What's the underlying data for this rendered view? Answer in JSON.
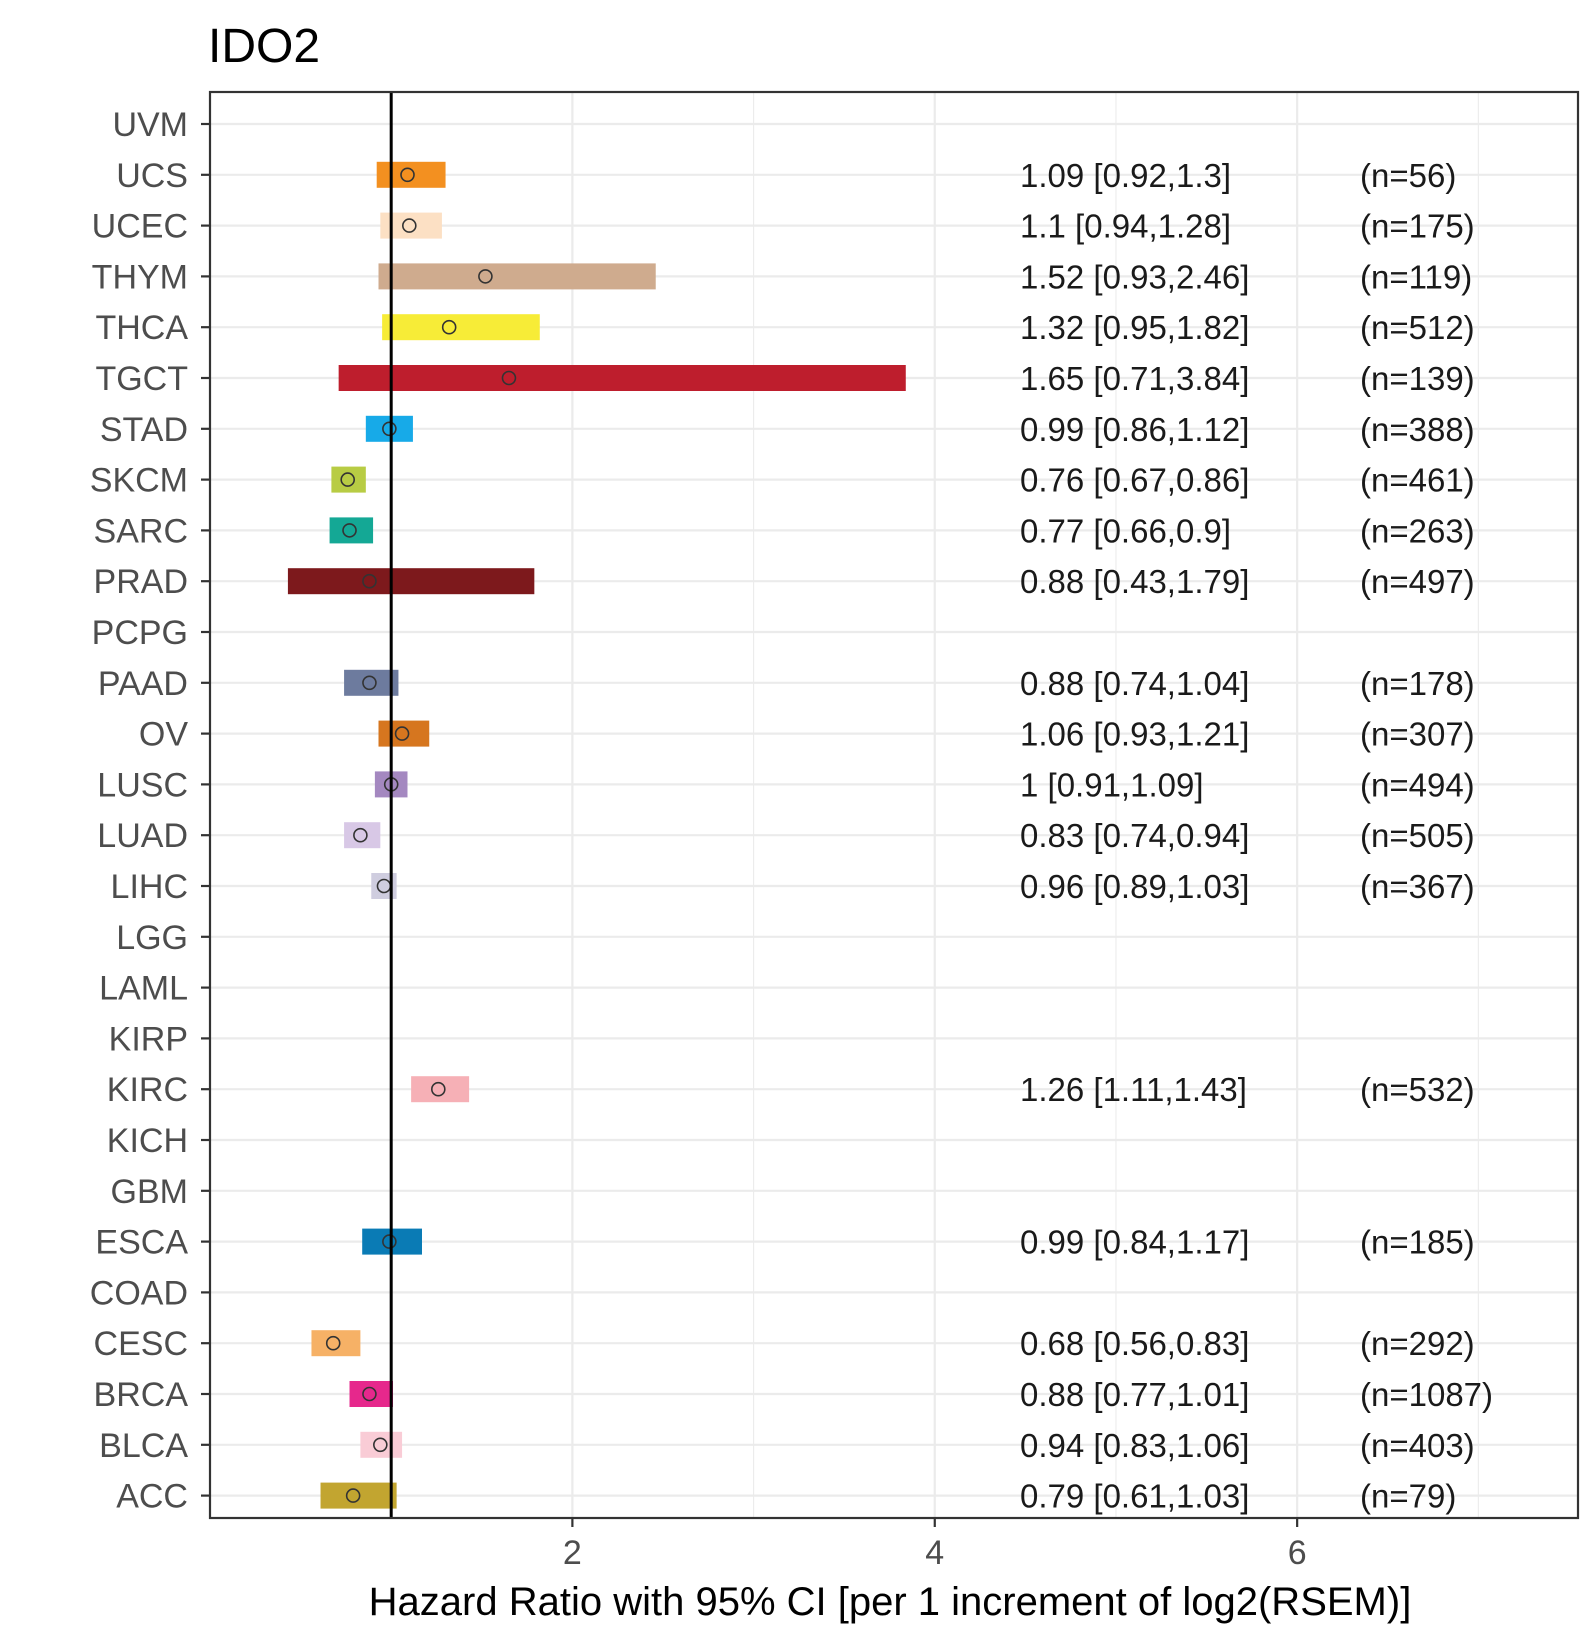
{
  "chart_data": {
    "type": "forest",
    "title": "IDO2",
    "xlabel": "Hazard Ratio with 95% CI [per 1 increment of log2(RSEM)]",
    "ylabel": "",
    "xlim": [
      0.0,
      7.55
    ],
    "x_ticks": [
      2,
      4,
      6
    ],
    "x_tick_labels": [
      "2",
      "4",
      "6"
    ],
    "reference_line": 1,
    "grid": true,
    "rows": [
      {
        "label": "UVM",
        "hr": null,
        "lo": null,
        "hi": null,
        "hr_text": "",
        "n_text": "",
        "color": ""
      },
      {
        "label": "UCS",
        "hr": 1.09,
        "lo": 0.92,
        "hi": 1.3,
        "hr_text": "1.09 [0.92,1.3]",
        "n_text": "(n=56)",
        "color": "#F39020"
      },
      {
        "label": "UCEC",
        "hr": 1.1,
        "lo": 0.94,
        "hi": 1.28,
        "hr_text": "1.1 [0.94,1.28]",
        "n_text": "(n=175)",
        "color": "#FCE0C4"
      },
      {
        "label": "THYM",
        "hr": 1.52,
        "lo": 0.93,
        "hi": 2.46,
        "hr_text": "1.52 [0.93,2.46]",
        "n_text": "(n=119)",
        "color": "#CFAB8E"
      },
      {
        "label": "THCA",
        "hr": 1.32,
        "lo": 0.95,
        "hi": 1.82,
        "hr_text": "1.32 [0.95,1.82]",
        "n_text": "(n=512)",
        "color": "#F7EC37"
      },
      {
        "label": "TGCT",
        "hr": 1.65,
        "lo": 0.71,
        "hi": 3.84,
        "hr_text": "1.65 [0.71,3.84]",
        "n_text": "(n=139)",
        "color": "#BE1E2D"
      },
      {
        "label": "STAD",
        "hr": 0.99,
        "lo": 0.86,
        "hi": 1.12,
        "hr_text": "0.99 [0.86,1.12]",
        "n_text": "(n=388)",
        "color": "#17AAE8"
      },
      {
        "label": "SKCM",
        "hr": 0.76,
        "lo": 0.67,
        "hi": 0.86,
        "hr_text": "0.76 [0.67,0.86]",
        "n_text": "(n=461)",
        "color": "#B8CC44"
      },
      {
        "label": "SARC",
        "hr": 0.77,
        "lo": 0.66,
        "hi": 0.9,
        "hr_text": "0.77 [0.66,0.9]",
        "n_text": "(n=263)",
        "color": "#14A895"
      },
      {
        "label": "PRAD",
        "hr": 0.88,
        "lo": 0.43,
        "hi": 1.79,
        "hr_text": "0.88 [0.43,1.79]",
        "n_text": "(n=497)",
        "color": "#7D191C"
      },
      {
        "label": "PCPG",
        "hr": null,
        "lo": null,
        "hi": null,
        "hr_text": "",
        "n_text": "",
        "color": ""
      },
      {
        "label": "PAAD",
        "hr": 0.88,
        "lo": 0.74,
        "hi": 1.04,
        "hr_text": "0.88 [0.74,1.04]",
        "n_text": "(n=178)",
        "color": "#6D7B9E"
      },
      {
        "label": "OV",
        "hr": 1.06,
        "lo": 0.93,
        "hi": 1.21,
        "hr_text": "1.06 [0.93,1.21]",
        "n_text": "(n=307)",
        "color": "#D6761F"
      },
      {
        "label": "LUSC",
        "hr": 1,
        "lo": 0.91,
        "hi": 1.09,
        "hr_text": "1 [0.91,1.09]",
        "n_text": "(n=494)",
        "color": "#A488C0"
      },
      {
        "label": "LUAD",
        "hr": 0.83,
        "lo": 0.74,
        "hi": 0.94,
        "hr_text": "0.83 [0.74,0.94]",
        "n_text": "(n=505)",
        "color": "#D8C8E6"
      },
      {
        "label": "LIHC",
        "hr": 0.96,
        "lo": 0.89,
        "hi": 1.03,
        "hr_text": "0.96 [0.89,1.03]",
        "n_text": "(n=367)",
        "color": "#CFCDDF"
      },
      {
        "label": "LGG",
        "hr": null,
        "lo": null,
        "hi": null,
        "hr_text": "",
        "n_text": "",
        "color": ""
      },
      {
        "label": "LAML",
        "hr": null,
        "lo": null,
        "hi": null,
        "hr_text": "",
        "n_text": "",
        "color": ""
      },
      {
        "label": "KIRP",
        "hr": null,
        "lo": null,
        "hi": null,
        "hr_text": "",
        "n_text": "",
        "color": ""
      },
      {
        "label": "KIRC",
        "hr": 1.26,
        "lo": 1.11,
        "hi": 1.43,
        "hr_text": "1.26 [1.11,1.43]",
        "n_text": "(n=532)",
        "color": "#F6B0B6"
      },
      {
        "label": "KICH",
        "hr": null,
        "lo": null,
        "hi": null,
        "hr_text": "",
        "n_text": "",
        "color": ""
      },
      {
        "label": "GBM",
        "hr": null,
        "lo": null,
        "hi": null,
        "hr_text": "",
        "n_text": "",
        "color": ""
      },
      {
        "label": "ESCA",
        "hr": 0.99,
        "lo": 0.84,
        "hi": 1.17,
        "hr_text": "0.99 [0.84,1.17]",
        "n_text": "(n=185)",
        "color": "#0A7BB5"
      },
      {
        "label": "COAD",
        "hr": null,
        "lo": null,
        "hi": null,
        "hr_text": "",
        "n_text": "",
        "color": ""
      },
      {
        "label": "CESC",
        "hr": 0.68,
        "lo": 0.56,
        "hi": 0.83,
        "hr_text": "0.68 [0.56,0.83]",
        "n_text": "(n=292)",
        "color": "#F6B166"
      },
      {
        "label": "BRCA",
        "hr": 0.88,
        "lo": 0.77,
        "hi": 1.01,
        "hr_text": "0.88 [0.77,1.01]",
        "n_text": "(n=1087)",
        "color": "#E6288C"
      },
      {
        "label": "BLCA",
        "hr": 0.94,
        "lo": 0.83,
        "hi": 1.06,
        "hr_text": "0.94 [0.83,1.06]",
        "n_text": "(n=403)",
        "color": "#F9CCD6"
      },
      {
        "label": "ACC",
        "hr": 0.79,
        "lo": 0.61,
        "hi": 1.03,
        "hr_text": "0.79 [0.61,1.03]",
        "n_text": "(n=79)",
        "color": "#C2A530"
      }
    ]
  }
}
